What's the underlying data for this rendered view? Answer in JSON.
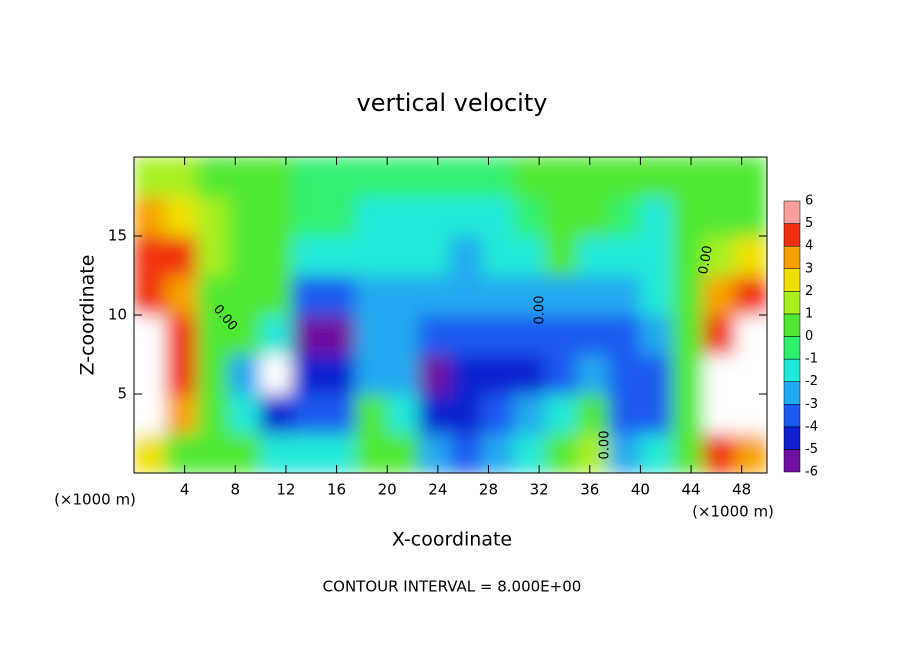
{
  "chart_data": {
    "type": "heatmap",
    "title": "vertical velocity",
    "x_label": "X-coordinate",
    "y_label": "Z-coordinate",
    "x_unit": "(×1000 m)",
    "footer": "CONTOUR INTERVAL = 8.000E+00",
    "contour_label": "0.00",
    "xlim": [
      0,
      50
    ],
    "ylim": [
      0,
      20
    ],
    "xticks": [
      4,
      8,
      12,
      16,
      20,
      24,
      28,
      32,
      36,
      40,
      44,
      48
    ],
    "yticks": [
      5,
      10,
      15
    ],
    "x": [
      1.25,
      3.75,
      6.25,
      8.75,
      11.25,
      13.75,
      16.25,
      18.75,
      21.25,
      23.75,
      26.25,
      28.75,
      31.25,
      33.75,
      36.25,
      38.75,
      41.25,
      43.75,
      46.25,
      48.75
    ],
    "y": [
      1.25,
      3.75,
      6.25,
      8.75,
      11.25,
      13.75,
      16.25,
      18.75
    ],
    "z": [
      [
        3,
        1,
        0.5,
        0.3,
        -1,
        -1.5,
        -1,
        0.5,
        0.3,
        -2,
        -3,
        -2,
        -1,
        0.5,
        2,
        -2,
        -1.5,
        0.5,
        5,
        4
      ],
      [
        7,
        4,
        1,
        -1,
        -4,
        -3,
        -3,
        0.5,
        -1,
        -4,
        -4,
        -3,
        -2,
        -1,
        1,
        -3,
        -3,
        0.5,
        7,
        7
      ],
      [
        7,
        5,
        1,
        -2,
        -7,
        -4,
        -4,
        -2,
        -2,
        -5,
        -4,
        -4,
        -4.5,
        -3,
        -2,
        -3,
        -3,
        0.5,
        7,
        7
      ],
      [
        7,
        5,
        0.5,
        0.5,
        -1,
        -5,
        -6,
        -2.5,
        -2,
        -3,
        -3,
        -3.5,
        -3,
        -3,
        -3,
        -3,
        -2,
        0.3,
        5,
        7
      ],
      [
        5,
        4,
        1,
        0.5,
        0.3,
        -3,
        -3,
        -2,
        -2,
        -2,
        -2.5,
        -2.5,
        -2,
        -2,
        -2,
        -2,
        -1.5,
        0.5,
        4,
        5
      ],
      [
        5,
        5,
        2,
        1,
        0.5,
        -1,
        -1.5,
        -1.5,
        -1.5,
        -1.5,
        -2,
        -1.5,
        -1,
        0.3,
        -1,
        -1.5,
        -1,
        0.5,
        2,
        3
      ],
      [
        4,
        3,
        1.5,
        1,
        0.5,
        -0.5,
        -0.5,
        -1,
        -1.5,
        -1,
        -1,
        -1,
        -0.5,
        0.5,
        0.5,
        -0.5,
        -1,
        0.3,
        1,
        1
      ],
      [
        2,
        1.5,
        0.5,
        0.3,
        0.3,
        0,
        0,
        -0.5,
        -0.5,
        -0.3,
        -0.3,
        -0.3,
        0.3,
        0.5,
        0.5,
        0.3,
        0.3,
        0.3,
        0.5,
        0.5
      ]
    ],
    "levels": [
      -6,
      -5,
      -4,
      -3,
      -2,
      -1,
      0,
      1,
      2,
      3,
      4,
      5,
      6
    ],
    "colors": [
      "#7010a0",
      "#1020d0",
      "#1a5af0",
      "#20a8f0",
      "#20e8d8",
      "#30f070",
      "#50e830",
      "#a8f020",
      "#f0e000",
      "#f8a000",
      "#f03010",
      "#f8a0a0"
    ],
    "out_of_range_color": "#ffffff"
  }
}
